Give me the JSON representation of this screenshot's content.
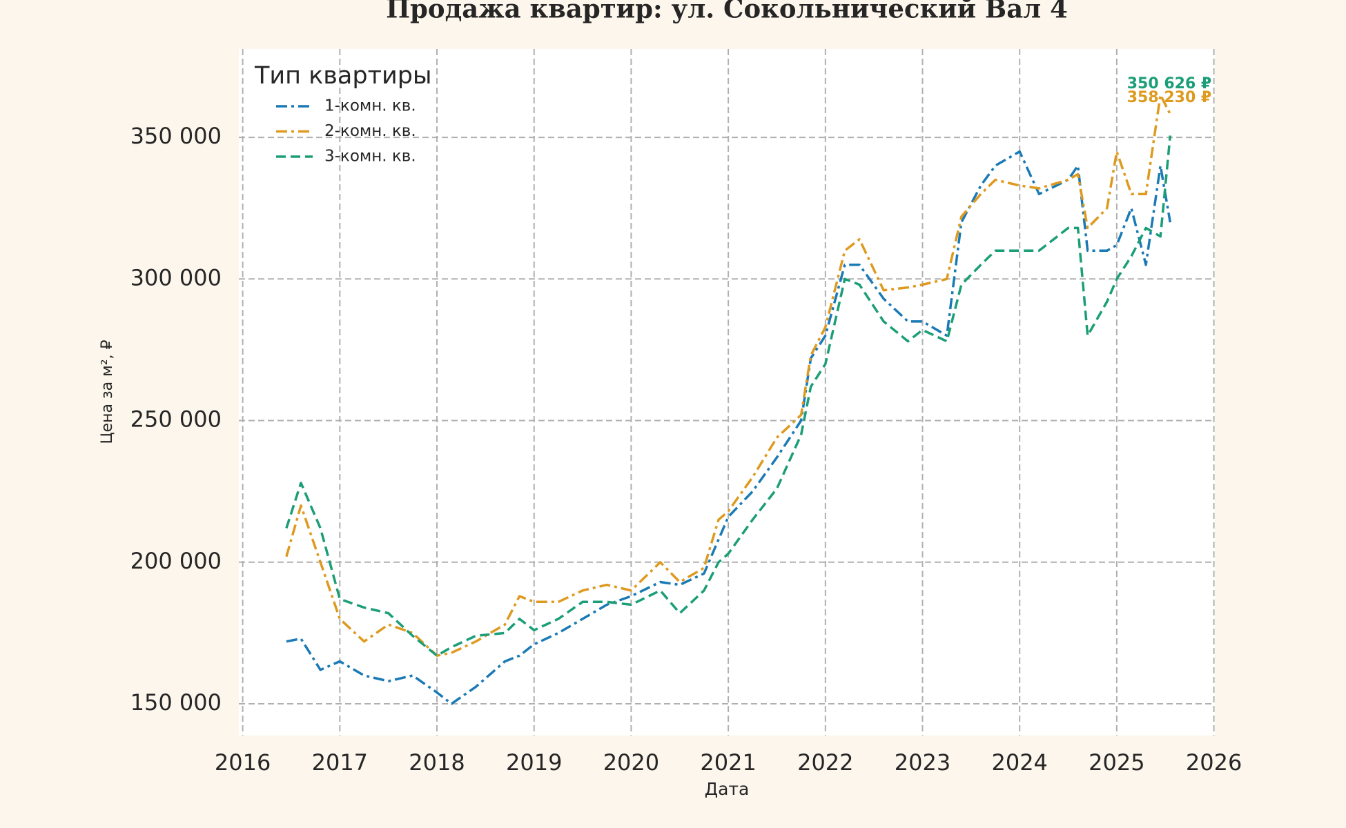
{
  "chart_data": {
    "type": "line",
    "title": "Продажа квартир: ул. Сокольнический Вал 4",
    "x_label": "Дата",
    "y_label": "Цена за м², ₽",
    "legend_title": "Тип квартиры",
    "legend": "upper left",
    "grid": true,
    "xlim": [
      2015.96,
      2026.01
    ],
    "xticks": [
      2016,
      2017,
      2018,
      2019,
      2020,
      2021,
      2022,
      2023,
      2024,
      2025,
      2026
    ],
    "ylim": [
      138800,
      381200
    ],
    "yticks": [
      {
        "value": 150000,
        "label": "150 000"
      },
      {
        "value": 200000,
        "label": "200 000"
      },
      {
        "value": 250000,
        "label": "250 000"
      },
      {
        "value": 300000,
        "label": "300 000"
      },
      {
        "value": 350000,
        "label": "350 000"
      }
    ],
    "x": [
      2016.45,
      2016.6,
      2016.8,
      2017.0,
      2017.25,
      2017.5,
      2017.75,
      2018.0,
      2018.15,
      2018.4,
      2018.7,
      2018.85,
      2019.0,
      2019.25,
      2019.5,
      2019.75,
      2020.0,
      2020.3,
      2020.5,
      2020.75,
      2020.9,
      2021.0,
      2021.25,
      2021.5,
      2021.75,
      2021.85,
      2022.0,
      2022.2,
      2022.35,
      2022.6,
      2022.85,
      2023.0,
      2023.25,
      2023.4,
      2023.6,
      2023.75,
      2024.0,
      2024.2,
      2024.5,
      2024.6,
      2024.7,
      2024.9,
      2025.0,
      2025.15,
      2025.3,
      2025.45,
      2025.55
    ],
    "series": [
      {
        "name": "1-комн. кв.",
        "color": "#1a7ab5",
        "linestyle": "dashdot",
        "values": [
          172000,
          173000,
          162000,
          165000,
          160000,
          158000,
          160000,
          154000,
          150000,
          156000,
          165000,
          167000,
          171000,
          175000,
          180000,
          185000,
          188000,
          193000,
          192000,
          196000,
          208000,
          216000,
          225000,
          237000,
          250000,
          272000,
          280000,
          305000,
          305000,
          293000,
          285000,
          285000,
          280000,
          320000,
          333000,
          340000,
          345000,
          330000,
          335000,
          340000,
          310000,
          310000,
          312000,
          325000,
          305000,
          340000,
          320000
        ]
      },
      {
        "name": "2-комн. кв.",
        "color": "#de9a1f",
        "linestyle": "dashdot",
        "end_label": "358 230 ₽",
        "values": [
          202000,
          220000,
          200000,
          180000,
          172000,
          178000,
          175000,
          167000,
          168000,
          172000,
          178000,
          188000,
          186000,
          186000,
          190000,
          192000,
          190000,
          200000,
          193000,
          198000,
          215000,
          218000,
          230000,
          244000,
          252000,
          273000,
          283000,
          310000,
          314000,
          296000,
          297000,
          298000,
          300000,
          322000,
          330000,
          335000,
          333000,
          332000,
          335000,
          337000,
          318000,
          325000,
          345000,
          330000,
          330000,
          365000,
          358230
        ]
      },
      {
        "name": "3-комн. кв.",
        "color": "#1b9e77",
        "linestyle": "dashed",
        "end_label": "350 626 ₽",
        "values": [
          212000,
          228000,
          212000,
          187000,
          184000,
          182000,
          174000,
          167000,
          170000,
          174000,
          175000,
          180000,
          176000,
          180000,
          186000,
          186000,
          185000,
          190000,
          182000,
          190000,
          200000,
          203000,
          215000,
          226000,
          245000,
          262000,
          270000,
          300000,
          298000,
          285000,
          278000,
          282000,
          278000,
          298000,
          305000,
          310000,
          310000,
          310000,
          318000,
          318000,
          280000,
          292000,
          300000,
          308000,
          318000,
          315000,
          350626
        ]
      }
    ]
  }
}
